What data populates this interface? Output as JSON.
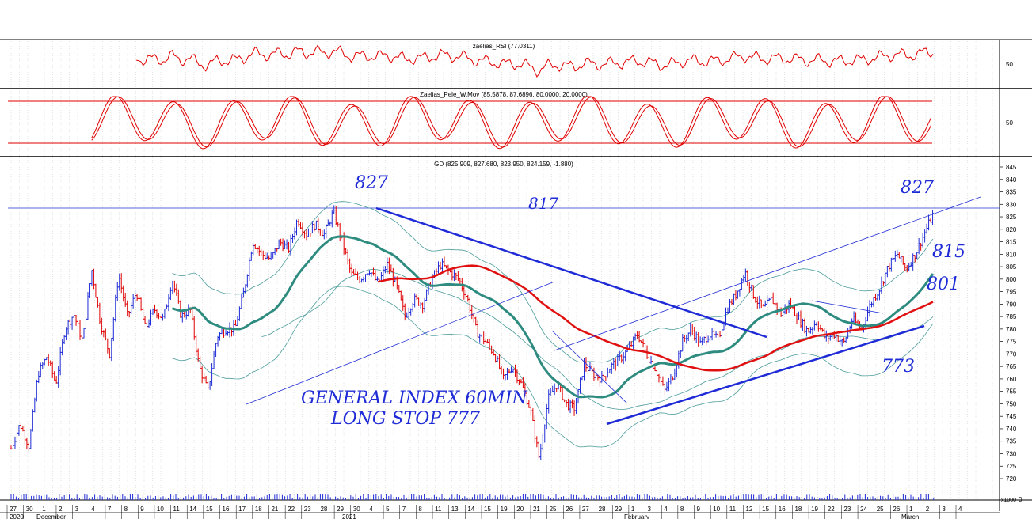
{
  "panels": {
    "rsi": {
      "title": "zaelias_RSI (77.0311)",
      "y_label": "50"
    },
    "stoch": {
      "title": "Zaelias_Pele_W.Mov (85.5878, 87.6896, 80.0000, 20.0000)",
      "y_label": "50"
    },
    "price": {
      "title": "GD (825.909, 827.680, 823.950, 824.159, -1.880)"
    }
  },
  "volume": {
    "scale_label": "x1000",
    "zero_label": "0"
  },
  "colors": {
    "up_bar": "#1e2bd6",
    "down_bar": "#e00000",
    "ma_green": "#2e8b80",
    "ma_red": "#e01010",
    "bands": "#4c9c9c",
    "trend": "#1e2bd6"
  },
  "annotations": [
    {
      "text": "827",
      "ref": "peak-january"
    },
    {
      "text": "817",
      "ref": "horizontal-line"
    },
    {
      "text": "827",
      "ref": "right-top"
    },
    {
      "text": "815",
      "ref": "right-mid"
    },
    {
      "text": "801",
      "ref": "right-ma"
    },
    {
      "text": "773",
      "ref": "right-support"
    },
    {
      "text": "GENERAL INDEX 60MIN",
      "ref": "note-1"
    },
    {
      "text": "LONG STOP 777",
      "ref": "note-2"
    }
  ],
  "chart_data": {
    "type": "ohlc",
    "title": "GD (825.909, 827.680, 823.950, 824.159, -1.880)",
    "ylim": [
      715,
      848
    ],
    "y_ticks": [
      720,
      725,
      730,
      735,
      740,
      745,
      750,
      755,
      760,
      765,
      770,
      775,
      780,
      785,
      790,
      795,
      800,
      805,
      810,
      815,
      820,
      825,
      830,
      835,
      840,
      845
    ],
    "last_bar": {
      "open": 825.909,
      "high": 827.68,
      "low": 823.95,
      "close": 824.159,
      "change": -1.88
    },
    "x_day_labels": [
      "27",
      "30",
      "1",
      "2",
      "3",
      "4",
      "7",
      "8",
      "9",
      "10",
      "11",
      "14",
      "15",
      "16",
      "17",
      "18",
      "21",
      "22",
      "23",
      "28",
      "29",
      "30",
      "4",
      "5",
      "7",
      "8",
      "11",
      "13",
      "14",
      "15",
      "19",
      "20",
      "21",
      "25",
      "26",
      "27",
      "28",
      "29",
      "1",
      "3",
      "4",
      "8",
      "9",
      "10",
      "11",
      "12",
      "15",
      "16",
      "18",
      "19",
      "22",
      "23",
      "24",
      "25",
      "26",
      "1",
      "2",
      "3",
      "4"
    ],
    "x_month_labels": [
      "2020",
      "December",
      "2021",
      "February",
      "March"
    ],
    "series": [
      {
        "name": "zaelias_RSI",
        "last": 77.0311
      },
      {
        "name": "Zaelias_Pele_W.Mov",
        "values": [
          85.5878,
          87.6896,
          80.0,
          20.0
        ]
      }
    ],
    "path_points": [
      [
        0,
        732
      ],
      [
        1,
        742
      ],
      [
        2,
        733
      ],
      [
        3,
        762
      ],
      [
        4,
        769
      ],
      [
        5,
        758
      ],
      [
        6,
        780
      ],
      [
        7,
        786
      ],
      [
        8,
        775
      ],
      [
        9,
        804
      ],
      [
        10,
        782
      ],
      [
        11,
        770
      ],
      [
        12,
        802
      ],
      [
        13,
        785
      ],
      [
        14,
        795
      ],
      [
        15,
        780
      ],
      [
        16,
        788
      ],
      [
        17,
        784
      ],
      [
        18,
        800
      ],
      [
        19,
        785
      ],
      [
        20,
        788
      ],
      [
        21,
        765
      ],
      [
        22,
        755
      ],
      [
        23,
        777
      ],
      [
        24,
        780
      ],
      [
        25,
        780
      ],
      [
        26,
        795
      ],
      [
        27,
        815
      ],
      [
        28,
        810
      ],
      [
        29,
        808
      ],
      [
        30,
        815
      ],
      [
        31,
        812
      ],
      [
        32,
        824
      ],
      [
        33,
        818
      ],
      [
        34,
        822
      ],
      [
        35,
        818
      ],
      [
        36,
        827
      ],
      [
        37,
        815
      ],
      [
        38,
        802
      ],
      [
        39,
        800
      ],
      [
        40,
        804
      ],
      [
        41,
        798
      ],
      [
        42,
        806
      ],
      [
        43,
        798
      ],
      [
        44,
        785
      ],
      [
        45,
        792
      ],
      [
        46,
        790
      ],
      [
        47,
        800
      ],
      [
        48,
        806
      ],
      [
        49,
        803
      ],
      [
        50,
        800
      ],
      [
        51,
        792
      ],
      [
        52,
        779
      ],
      [
        53,
        775
      ],
      [
        54,
        770
      ],
      [
        55,
        760
      ],
      [
        56,
        765
      ],
      [
        57,
        758
      ],
      [
        58,
        748
      ],
      [
        59,
        728
      ],
      [
        60,
        752
      ],
      [
        61,
        758
      ],
      [
        62,
        750
      ],
      [
        63,
        748
      ],
      [
        64,
        766
      ],
      [
        65,
        762
      ],
      [
        66,
        760
      ],
      [
        67,
        765
      ],
      [
        68,
        768
      ],
      [
        69,
        772
      ],
      [
        70,
        778
      ],
      [
        71,
        770
      ],
      [
        72,
        764
      ],
      [
        73,
        755
      ],
      [
        74,
        762
      ],
      [
        75,
        775
      ],
      [
        76,
        780
      ],
      [
        77,
        774
      ],
      [
        78,
        778
      ],
      [
        79,
        776
      ],
      [
        80,
        788
      ],
      [
        81,
        794
      ],
      [
        82,
        803
      ],
      [
        83,
        793
      ],
      [
        84,
        788
      ],
      [
        85,
        792
      ],
      [
        86,
        786
      ],
      [
        87,
        790
      ],
      [
        88,
        784
      ],
      [
        89,
        779
      ],
      [
        90,
        783
      ],
      [
        91,
        776
      ],
      [
        92,
        778
      ],
      [
        93,
        774
      ],
      [
        94,
        784
      ],
      [
        95,
        780
      ],
      [
        96,
        790
      ],
      [
        97,
        796
      ],
      [
        98,
        805
      ],
      [
        99,
        810
      ],
      [
        100,
        804
      ],
      [
        101,
        810
      ],
      [
        102,
        818
      ],
      [
        103,
        826
      ]
    ]
  }
}
